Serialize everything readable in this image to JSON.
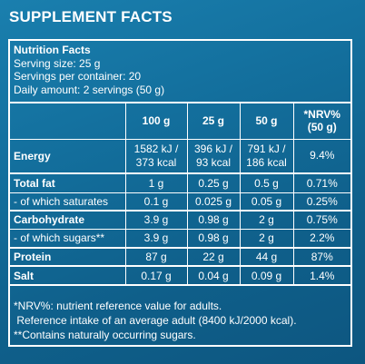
{
  "page": {
    "title": "SUPPLEMENT FACTS"
  },
  "facts": {
    "heading": "Nutrition Facts",
    "serving_size": "Serving size: 25 g",
    "servings_per_container": "Servings per container: 20",
    "daily_amount": "Daily amount: 2 servings (50 g)"
  },
  "table": {
    "columns": [
      "",
      "100 g",
      "25 g",
      "50 g",
      "*NRV%\n(50 g)"
    ],
    "column_labels": {
      "c1": "100 g",
      "c2": "25 g",
      "c3": "50 g",
      "c4_line1": "*NRV%",
      "c4_line2": "(50 g)"
    },
    "rows": [
      {
        "label": "Energy",
        "bold": true,
        "c1_line1": "1582 kJ /",
        "c1_line2": "373 kcal",
        "c2_line1": "396 kJ /",
        "c2_line2": "93 kcal",
        "c3_line1": "791 kJ /",
        "c3_line2": "186 kcal",
        "c4": "9.4%"
      },
      {
        "label": "Total fat",
        "bold": true,
        "c1": "1 g",
        "c2": "0.25 g",
        "c3": "0.5 g",
        "c4": "0.71%"
      },
      {
        "label": "- of which saturates",
        "bold": false,
        "c1": "0.1 g",
        "c2": "0.025 g",
        "c3": "0.05 g",
        "c4": "0.25%"
      },
      {
        "label": "Carbohydrate",
        "bold": true,
        "c1": "3.9 g",
        "c2": "0.98 g",
        "c3": "2 g",
        "c4": "0.75%"
      },
      {
        "label": "- of which sugars**",
        "bold": false,
        "c1": "3.9 g",
        "c2": "0.98 g",
        "c3": "2 g",
        "c4": "2.2%"
      },
      {
        "label": "Protein",
        "bold": true,
        "c1": "87 g",
        "c2": "22 g",
        "c3": "44 g",
        "c4": "87%"
      },
      {
        "label": "Salt",
        "bold": true,
        "c1": "0.17 g",
        "c2": "0.04 g",
        "c3": "0.09 g",
        "c4": "1.4%"
      }
    ]
  },
  "footnotes": {
    "nrv": "*NRV%: nutrient reference value for adults.",
    "reference": " Reference intake of an average adult (8400 kJ/2000 kcal).",
    "sugars": "**Contains naturally occurring sugars."
  },
  "colors": {
    "background_top": "#1a7fae",
    "background_bottom": "#0d5680",
    "text": "#ffffff",
    "rules": "#ffffff"
  }
}
